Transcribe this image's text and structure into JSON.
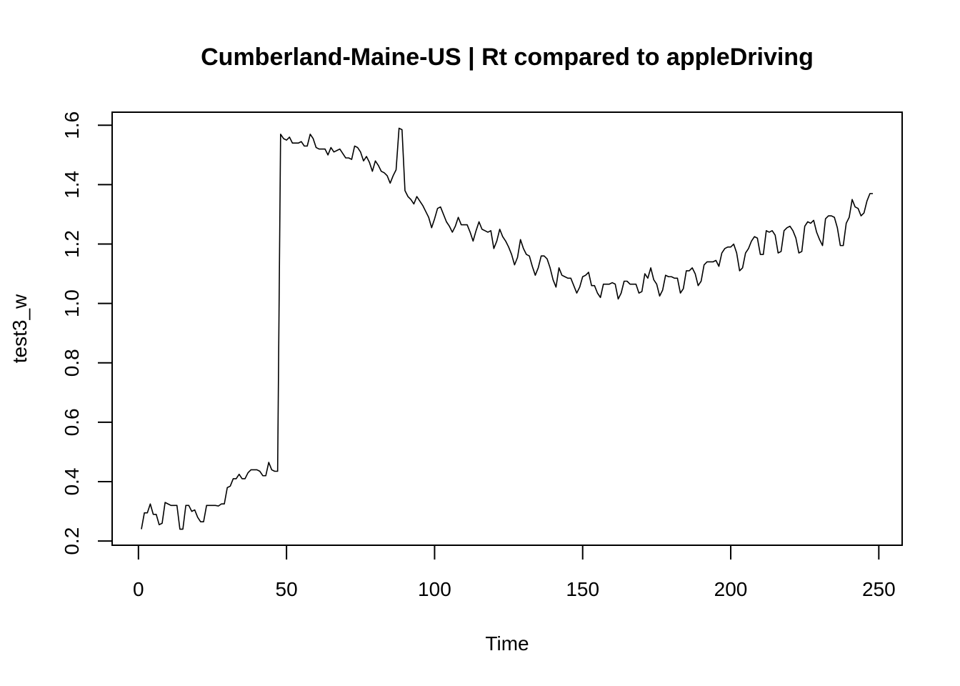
{
  "chart_data": {
    "type": "line",
    "title": "Cumberland-Maine-US | Rt compared to appleDriving",
    "xlabel": "Time",
    "ylabel": "test3_w",
    "xlim": [
      1,
      248
    ],
    "ylim": [
      0.24,
      1.59
    ],
    "x_ticks": [
      0,
      50,
      100,
      150,
      200,
      250
    ],
    "y_ticks": [
      0.2,
      0.4,
      0.6,
      0.8,
      1.0,
      1.2,
      1.4,
      1.6
    ],
    "x_tick_labels": [
      "0",
      "50",
      "100",
      "150",
      "200",
      "250"
    ],
    "y_tick_labels": [
      "0.2",
      "0.4",
      "0.6",
      "0.8",
      "1.0",
      "1.2",
      "1.4",
      "1.6"
    ],
    "grid": false,
    "series": [
      {
        "color": "#000000",
        "x_start": 1,
        "x_step": 1,
        "values": [
          0.24,
          0.295,
          0.295,
          0.325,
          0.29,
          0.29,
          0.255,
          0.26,
          0.33,
          0.325,
          0.32,
          0.32,
          0.32,
          0.24,
          0.24,
          0.32,
          0.32,
          0.3,
          0.305,
          0.28,
          0.265,
          0.265,
          0.32,
          0.32,
          0.32,
          0.32,
          0.318,
          0.325,
          0.325,
          0.38,
          0.385,
          0.41,
          0.41,
          0.425,
          0.41,
          0.41,
          0.43,
          0.44,
          0.44,
          0.44,
          0.435,
          0.42,
          0.42,
          0.465,
          0.44,
          0.435,
          0.435,
          1.57,
          1.555,
          1.55,
          1.56,
          1.54,
          1.54,
          1.54,
          1.545,
          1.53,
          1.53,
          1.57,
          1.555,
          1.525,
          1.52,
          1.52,
          1.52,
          1.5,
          1.525,
          1.51,
          1.515,
          1.52,
          1.505,
          1.49,
          1.49,
          1.485,
          1.53,
          1.525,
          1.51,
          1.48,
          1.495,
          1.475,
          1.445,
          1.48,
          1.465,
          1.445,
          1.44,
          1.43,
          1.405,
          1.43,
          1.45,
          1.59,
          1.585,
          1.38,
          1.36,
          1.35,
          1.335,
          1.36,
          1.345,
          1.33,
          1.31,
          1.29,
          1.255,
          1.285,
          1.32,
          1.325,
          1.3,
          1.275,
          1.26,
          1.24,
          1.26,
          1.29,
          1.265,
          1.265,
          1.265,
          1.24,
          1.21,
          1.245,
          1.275,
          1.25,
          1.245,
          1.24,
          1.245,
          1.185,
          1.21,
          1.25,
          1.225,
          1.21,
          1.19,
          1.165,
          1.13,
          1.155,
          1.215,
          1.185,
          1.165,
          1.16,
          1.125,
          1.095,
          1.12,
          1.16,
          1.16,
          1.15,
          1.12,
          1.08,
          1.055,
          1.12,
          1.095,
          1.09,
          1.085,
          1.085,
          1.06,
          1.035,
          1.055,
          1.09,
          1.095,
          1.105,
          1.06,
          1.06,
          1.035,
          1.02,
          1.065,
          1.065,
          1.065,
          1.07,
          1.065,
          1.015,
          1.035,
          1.075,
          1.075,
          1.065,
          1.065,
          1.065,
          1.035,
          1.04,
          1.1,
          1.085,
          1.12,
          1.08,
          1.065,
          1.025,
          1.045,
          1.095,
          1.09,
          1.09,
          1.085,
          1.085,
          1.035,
          1.05,
          1.11,
          1.11,
          1.12,
          1.1,
          1.06,
          1.075,
          1.13,
          1.14,
          1.14,
          1.14,
          1.145,
          1.125,
          1.17,
          1.185,
          1.19,
          1.19,
          1.2,
          1.17,
          1.11,
          1.12,
          1.17,
          1.185,
          1.21,
          1.225,
          1.22,
          1.165,
          1.165,
          1.245,
          1.24,
          1.245,
          1.23,
          1.17,
          1.175,
          1.245,
          1.255,
          1.26,
          1.245,
          1.22,
          1.17,
          1.175,
          1.26,
          1.275,
          1.27,
          1.28,
          1.24,
          1.215,
          1.195,
          1.285,
          1.295,
          1.295,
          1.29,
          1.255,
          1.195,
          1.195,
          1.27,
          1.29,
          1.35,
          1.325,
          1.32,
          1.295,
          1.305,
          1.345,
          1.37,
          1.37
        ]
      }
    ]
  }
}
